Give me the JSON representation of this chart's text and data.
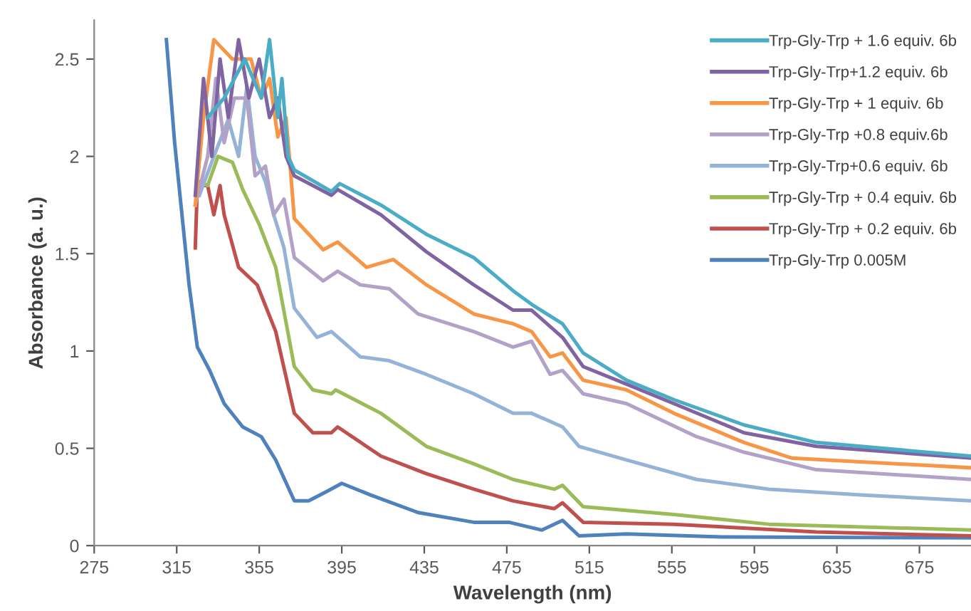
{
  "chart_data": {
    "type": "line",
    "xlabel": "Wavelength (nm)",
    "ylabel": "Absorbance (a. u.)",
    "xlim": [
      275,
      700
    ],
    "xticks": [
      275,
      315,
      355,
      395,
      435,
      475,
      515,
      555,
      595,
      635,
      675
    ],
    "ylim": [
      0,
      2.7
    ],
    "yticks": [
      0,
      0.5,
      1,
      1.5,
      2,
      2.5
    ],
    "grid": false,
    "legend": "top right",
    "marker": "none",
    "line_style": "solid",
    "series": [
      {
        "name": "Trp-Gly-Trp + 1.6 equiv. 6b",
        "color": "#4bacc6",
        "x": [
          330,
          338,
          348,
          356,
          360,
          364,
          366,
          369,
          372,
          390,
          394,
          414,
          436,
          459,
          478,
          487,
          502,
          512,
          533,
          556,
          590,
          625,
          700
        ],
        "values": [
          2.2,
          2.3,
          2.5,
          2.3,
          2.6,
          2.2,
          2.4,
          2.0,
          1.93,
          1.82,
          1.86,
          1.75,
          1.6,
          1.48,
          1.31,
          1.24,
          1.14,
          0.99,
          0.85,
          0.75,
          0.62,
          0.53,
          0.46
        ]
      },
      {
        "name": "Trp-Gly-Trp+1.2 equiv. 6b",
        "color": "#8064a2",
        "x": [
          324,
          328,
          332,
          336,
          340,
          345,
          350,
          355,
          360,
          364,
          368,
          372,
          390,
          393,
          414,
          436,
          459,
          478,
          487,
          502,
          512,
          533,
          556,
          590,
          625,
          700
        ],
        "values": [
          1.8,
          2.4,
          2.0,
          2.5,
          2.2,
          2.6,
          2.3,
          2.5,
          2.2,
          2.3,
          2.0,
          1.9,
          1.8,
          1.83,
          1.7,
          1.51,
          1.34,
          1.21,
          1.21,
          1.07,
          0.92,
          0.83,
          0.73,
          0.58,
          0.51,
          0.45
        ]
      },
      {
        "name": "Trp-Gly-Trp + 1 equiv. 6b",
        "color": "#f79646",
        "x": [
          324,
          328,
          333,
          342,
          351,
          356,
          360,
          364,
          368,
          370,
          372,
          386,
          393,
          407,
          420,
          436,
          459,
          478,
          487,
          496,
          502,
          512,
          533,
          556,
          590,
          613,
          700
        ],
        "values": [
          1.75,
          2.2,
          2.6,
          2.5,
          2.5,
          2.3,
          2.4,
          2.1,
          2.2,
          1.95,
          1.68,
          1.52,
          1.56,
          1.43,
          1.47,
          1.34,
          1.19,
          1.14,
          1.1,
          0.97,
          0.99,
          0.85,
          0.8,
          0.68,
          0.53,
          0.45,
          0.4
        ]
      },
      {
        "name": "Trp-Gly-Trp +0.8 equiv.6b",
        "color": "#b3a2c7",
        "x": [
          324,
          330,
          334,
          338,
          343,
          349,
          353,
          358,
          362,
          367,
          372,
          386,
          393,
          404,
          418,
          432,
          459,
          478,
          487,
          496,
          502,
          512,
          533,
          567,
          590,
          625,
          700
        ],
        "values": [
          1.75,
          2.0,
          2.4,
          2.07,
          2.3,
          2.3,
          1.9,
          1.95,
          1.7,
          1.78,
          1.48,
          1.36,
          1.41,
          1.34,
          1.32,
          1.19,
          1.1,
          1.02,
          1.05,
          0.88,
          0.9,
          0.78,
          0.73,
          0.56,
          0.48,
          0.39,
          0.34
        ]
      },
      {
        "name": "Trp-Gly-Trp+0.6 equiv. 6b",
        "color": "#95b3d7",
        "x": [
          326,
          333,
          340,
          345,
          349,
          353,
          358,
          362,
          367,
          372,
          383,
          390,
          404,
          418,
          436,
          459,
          478,
          487,
          502,
          510,
          533,
          567,
          602,
          648,
          700
        ],
        "values": [
          1.8,
          2.0,
          2.19,
          2.0,
          2.36,
          2.0,
          1.87,
          1.7,
          1.53,
          1.22,
          1.07,
          1.1,
          0.97,
          0.95,
          0.88,
          0.78,
          0.68,
          0.68,
          0.61,
          0.51,
          0.44,
          0.34,
          0.29,
          0.26,
          0.23
        ]
      },
      {
        "name": "Trp-Gly-Trp + 0.4 equiv. 6b",
        "color": "#9bbb59",
        "x": [
          326,
          330,
          335,
          342,
          347,
          355,
          363,
          372,
          381,
          390,
          392,
          414,
          436,
          459,
          478,
          498,
          502,
          512,
          556,
          602,
          700
        ],
        "values": [
          1.87,
          1.85,
          2.0,
          1.97,
          1.83,
          1.65,
          1.43,
          0.92,
          0.8,
          0.78,
          0.8,
          0.68,
          0.51,
          0.42,
          0.34,
          0.29,
          0.31,
          0.2,
          0.16,
          0.11,
          0.08
        ]
      },
      {
        "name": "Trp-Gly-Trp + 0.2 equiv. 6b",
        "color": "#c0504d",
        "x": [
          324,
          325,
          330,
          333,
          336,
          338,
          345,
          354,
          363,
          372,
          381,
          390,
          393,
          414,
          436,
          459,
          478,
          498,
          502,
          512,
          556,
          625,
          700
        ],
        "values": [
          1.53,
          1.85,
          1.85,
          1.7,
          1.85,
          1.7,
          1.43,
          1.34,
          1.1,
          0.68,
          0.58,
          0.58,
          0.61,
          0.46,
          0.37,
          0.29,
          0.23,
          0.19,
          0.22,
          0.12,
          0.11,
          0.07,
          0.05
        ]
      },
      {
        "name": "Trp-Gly-Trp 0.005M",
        "color": "#4f81bd",
        "x": [
          310,
          314,
          321,
          325,
          331,
          338,
          347,
          356,
          363,
          372,
          379,
          388,
          395,
          409,
          432,
          459,
          476,
          492,
          502,
          510,
          533,
          579,
          700
        ],
        "values": [
          2.6,
          2.07,
          1.34,
          1.02,
          0.9,
          0.73,
          0.61,
          0.56,
          0.44,
          0.23,
          0.23,
          0.28,
          0.32,
          0.26,
          0.17,
          0.12,
          0.12,
          0.08,
          0.13,
          0.05,
          0.06,
          0.045,
          0.04
        ]
      }
    ]
  }
}
